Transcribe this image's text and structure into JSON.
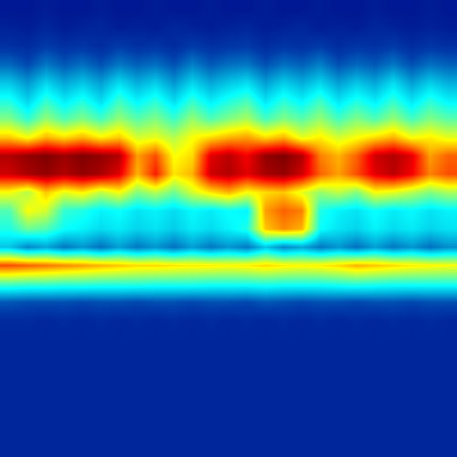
{
  "chart_data": {
    "type": "heatmap",
    "tick_labels": false,
    "xlim": [
      -0.5,
      24.5
    ],
    "ylim": [
      24.5,
      -0.5
    ],
    "zlim": [
      0,
      1
    ],
    "cells": [
      [
        0.05,
        0.05,
        0.06,
        0.05,
        0.05,
        0.06,
        0.05,
        0.05,
        0.06,
        0.05,
        0.05,
        0.06,
        0.05,
        0.05,
        0.06,
        0.05,
        0.05,
        0.06,
        0.05,
        0.05,
        0.06,
        0.05,
        0.05,
        0.06,
        0.05
      ],
      [
        0.07,
        0.06,
        0.08,
        0.06,
        0.07,
        0.08,
        0.06,
        0.07,
        0.06,
        0.08,
        0.07,
        0.06,
        0.07,
        0.08,
        0.06,
        0.07,
        0.08,
        0.06,
        0.07,
        0.06,
        0.08,
        0.07,
        0.06,
        0.07,
        0.06
      ],
      [
        0.1,
        0.09,
        0.12,
        0.1,
        0.11,
        0.09,
        0.12,
        0.1,
        0.11,
        0.09,
        0.12,
        0.1,
        0.11,
        0.12,
        0.09,
        0.11,
        0.1,
        0.12,
        0.09,
        0.11,
        0.1,
        0.12,
        0.09,
        0.11,
        0.1
      ],
      [
        0.18,
        0.14,
        0.2,
        0.16,
        0.19,
        0.15,
        0.2,
        0.17,
        0.19,
        0.15,
        0.21,
        0.16,
        0.19,
        0.2,
        0.15,
        0.19,
        0.17,
        0.21,
        0.15,
        0.18,
        0.16,
        0.2,
        0.15,
        0.19,
        0.17
      ],
      [
        0.3,
        0.24,
        0.32,
        0.26,
        0.3,
        0.25,
        0.33,
        0.27,
        0.31,
        0.24,
        0.32,
        0.26,
        0.3,
        0.33,
        0.25,
        0.31,
        0.27,
        0.32,
        0.25,
        0.3,
        0.26,
        0.33,
        0.25,
        0.31,
        0.27
      ],
      [
        0.4,
        0.32,
        0.42,
        0.35,
        0.4,
        0.33,
        0.43,
        0.36,
        0.41,
        0.33,
        0.42,
        0.35,
        0.4,
        0.44,
        0.34,
        0.41,
        0.36,
        0.43,
        0.34,
        0.4,
        0.35,
        0.42,
        0.34,
        0.41,
        0.36
      ],
      [
        0.5,
        0.42,
        0.52,
        0.45,
        0.5,
        0.44,
        0.52,
        0.46,
        0.5,
        0.43,
        0.52,
        0.45,
        0.5,
        0.54,
        0.44,
        0.5,
        0.46,
        0.52,
        0.44,
        0.5,
        0.45,
        0.52,
        0.44,
        0.5,
        0.46
      ],
      [
        0.68,
        0.62,
        0.7,
        0.66,
        0.7,
        0.64,
        0.68,
        0.58,
        0.6,
        0.55,
        0.62,
        0.66,
        0.7,
        0.72,
        0.66,
        0.7,
        0.6,
        0.64,
        0.58,
        0.62,
        0.66,
        0.7,
        0.62,
        0.64,
        0.6
      ],
      [
        0.95,
        0.98,
        1.0,
        0.97,
        1.0,
        0.98,
        0.95,
        0.72,
        0.8,
        0.62,
        0.66,
        0.9,
        0.94,
        0.88,
        0.98,
        1.0,
        0.95,
        0.75,
        0.7,
        0.78,
        0.92,
        0.95,
        0.9,
        0.72,
        0.78
      ],
      [
        0.92,
        0.96,
        0.98,
        0.95,
        0.98,
        0.96,
        0.9,
        0.7,
        0.85,
        0.65,
        0.7,
        0.92,
        0.95,
        0.9,
        0.96,
        0.98,
        0.92,
        0.78,
        0.72,
        0.8,
        0.9,
        0.94,
        0.88,
        0.75,
        0.8
      ],
      [
        0.62,
        0.55,
        0.68,
        0.6,
        0.64,
        0.56,
        0.62,
        0.5,
        0.55,
        0.48,
        0.58,
        0.65,
        0.7,
        0.62,
        0.66,
        0.68,
        0.6,
        0.52,
        0.56,
        0.5,
        0.62,
        0.6,
        0.55,
        0.5,
        0.54
      ],
      [
        0.45,
        0.62,
        0.58,
        0.42,
        0.4,
        0.36,
        0.38,
        0.34,
        0.36,
        0.33,
        0.37,
        0.35,
        0.38,
        0.36,
        0.72,
        0.78,
        0.75,
        0.4,
        0.36,
        0.34,
        0.38,
        0.35,
        0.37,
        0.34,
        0.36
      ],
      [
        0.4,
        0.48,
        0.45,
        0.38,
        0.36,
        0.33,
        0.35,
        0.32,
        0.34,
        0.31,
        0.35,
        0.33,
        0.36,
        0.4,
        0.68,
        0.74,
        0.7,
        0.38,
        0.34,
        0.32,
        0.36,
        0.33,
        0.35,
        0.32,
        0.34
      ],
      [
        0.3,
        0.22,
        0.26,
        0.2,
        0.24,
        0.19,
        0.25,
        0.2,
        0.24,
        0.19,
        0.25,
        0.2,
        0.24,
        0.2,
        0.3,
        0.22,
        0.26,
        0.2,
        0.24,
        0.19,
        0.25,
        0.2,
        0.24,
        0.19,
        0.23
      ],
      [
        0.8,
        0.78,
        0.76,
        0.74,
        0.72,
        0.7,
        0.68,
        0.66,
        0.66,
        0.65,
        0.64,
        0.64,
        0.63,
        0.64,
        0.66,
        0.64,
        0.63,
        0.64,
        0.66,
        0.7,
        0.68,
        0.66,
        0.64,
        0.63,
        0.62
      ],
      [
        0.45,
        0.44,
        0.44,
        0.43,
        0.43,
        0.42,
        0.42,
        0.42,
        0.41,
        0.41,
        0.41,
        0.4,
        0.4,
        0.4,
        0.41,
        0.4,
        0.4,
        0.4,
        0.41,
        0.42,
        0.41,
        0.4,
        0.4,
        0.4,
        0.4
      ],
      [
        0.16,
        0.15,
        0.15,
        0.15,
        0.14,
        0.15,
        0.15,
        0.14,
        0.15,
        0.15,
        0.14,
        0.15,
        0.15,
        0.14,
        0.16,
        0.15,
        0.14,
        0.15,
        0.15,
        0.14,
        0.15,
        0.15,
        0.14,
        0.15,
        0.15
      ],
      [
        0.09,
        0.09,
        0.08,
        0.09,
        0.08,
        0.09,
        0.08,
        0.09,
        0.08,
        0.09,
        0.08,
        0.09,
        0.08,
        0.09,
        0.08,
        0.09,
        0.08,
        0.09,
        0.08,
        0.09,
        0.08,
        0.09,
        0.08,
        0.09,
        0.08
      ],
      [
        0.08,
        0.08,
        0.08,
        0.08,
        0.08,
        0.08,
        0.08,
        0.08,
        0.08,
        0.08,
        0.08,
        0.08,
        0.08,
        0.08,
        0.08,
        0.08,
        0.08,
        0.08,
        0.08,
        0.08,
        0.08,
        0.08,
        0.08,
        0.08,
        0.08
      ],
      [
        0.08,
        0.08,
        0.08,
        0.08,
        0.08,
        0.08,
        0.08,
        0.08,
        0.08,
        0.08,
        0.08,
        0.08,
        0.08,
        0.08,
        0.08,
        0.08,
        0.08,
        0.08,
        0.08,
        0.08,
        0.08,
        0.08,
        0.08,
        0.08,
        0.08
      ],
      [
        0.08,
        0.08,
        0.08,
        0.08,
        0.08,
        0.08,
        0.08,
        0.08,
        0.08,
        0.08,
        0.08,
        0.08,
        0.08,
        0.08,
        0.08,
        0.08,
        0.08,
        0.08,
        0.08,
        0.08,
        0.08,
        0.08,
        0.08,
        0.08,
        0.08
      ],
      [
        0.08,
        0.08,
        0.08,
        0.08,
        0.08,
        0.08,
        0.08,
        0.08,
        0.08,
        0.08,
        0.08,
        0.08,
        0.08,
        0.08,
        0.08,
        0.08,
        0.08,
        0.08,
        0.08,
        0.08,
        0.08,
        0.08,
        0.08,
        0.08,
        0.08
      ],
      [
        0.08,
        0.08,
        0.08,
        0.08,
        0.08,
        0.08,
        0.08,
        0.08,
        0.08,
        0.08,
        0.08,
        0.08,
        0.08,
        0.08,
        0.08,
        0.08,
        0.08,
        0.08,
        0.08,
        0.08,
        0.08,
        0.08,
        0.08,
        0.08,
        0.08
      ],
      [
        0.08,
        0.08,
        0.08,
        0.08,
        0.08,
        0.08,
        0.08,
        0.08,
        0.08,
        0.08,
        0.08,
        0.08,
        0.08,
        0.08,
        0.08,
        0.08,
        0.08,
        0.08,
        0.08,
        0.08,
        0.08,
        0.08,
        0.08,
        0.08,
        0.08
      ],
      [
        0.08,
        0.08,
        0.08,
        0.08,
        0.08,
        0.08,
        0.08,
        0.08,
        0.08,
        0.08,
        0.08,
        0.08,
        0.08,
        0.08,
        0.08,
        0.08,
        0.08,
        0.08,
        0.08,
        0.08,
        0.08,
        0.08,
        0.08,
        0.08,
        0.08
      ]
    ]
  }
}
